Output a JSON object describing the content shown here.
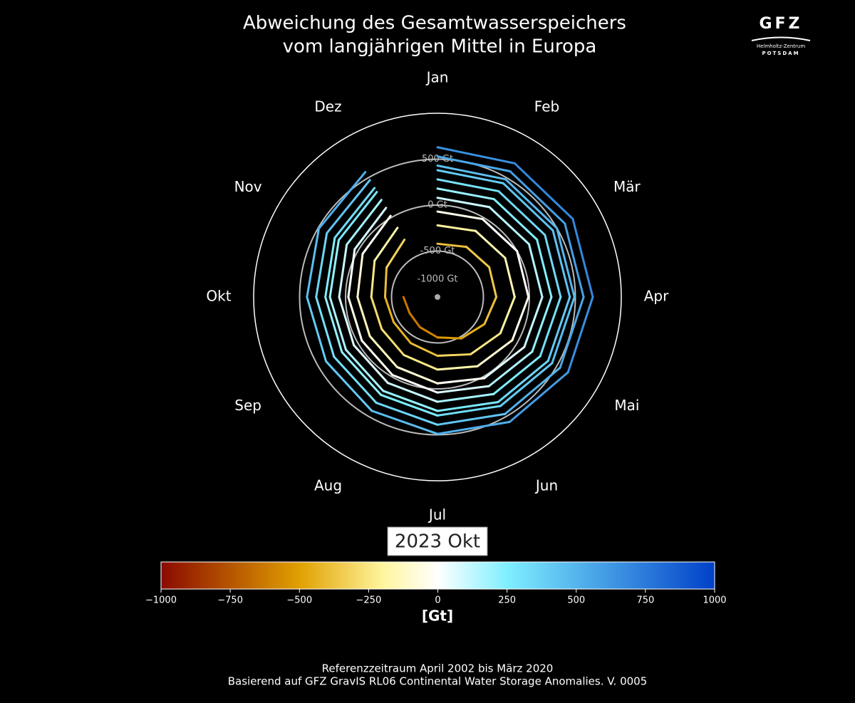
{
  "chart_data": {
    "type": "polar-line",
    "title": "Abweichung des Gesamtwasserspeichers",
    "subtitle": "vom langjährigen Mittel in Europa",
    "categories": [
      "Jan",
      "Feb",
      "Mär",
      "Apr",
      "Mai",
      "Jun",
      "Jul",
      "Aug",
      "Sep",
      "Okt",
      "Nov",
      "Dez"
    ],
    "rlim": [
      -1000,
      1000
    ],
    "rticks": [
      {
        "value": -1000,
        "label": "-1000 Gt"
      },
      {
        "value": -500,
        "label": "-500 Gt"
      },
      {
        "value": 0,
        "label": "0 Gt"
      },
      {
        "value": 500,
        "label": "500 Gt"
      }
    ],
    "series": [
      {
        "values": [
          630,
          680,
          700,
          690,
          640,
          570,
          490,
          430,
          400,
          420,
          490,
          570
        ]
      },
      {
        "values": [
          530,
          580,
          600,
          590,
          540,
          470,
          390,
          330,
          300,
          320,
          390,
          470
        ]
      },
      {
        "values": [
          430,
          480,
          500,
          490,
          440,
          370,
          290,
          230,
          200,
          220,
          290,
          370
        ]
      },
      {
        "values": [
          380,
          430,
          450,
          440,
          390,
          320,
          240,
          180,
          150,
          170,
          240,
          320
        ]
      },
      {
        "values": [
          280,
          330,
          350,
          340,
          290,
          220,
          140,
          80,
          50,
          70,
          140,
          220
        ]
      },
      {
        "values": [
          180,
          230,
          250,
          240,
          190,
          120,
          40,
          -20,
          -50,
          -30,
          40,
          120
        ]
      },
      {
        "values": [
          80,
          130,
          150,
          140,
          90,
          20,
          -60,
          -120,
          -150,
          -130,
          -60,
          20
        ]
      },
      {
        "values": [
          -70,
          -20,
          0,
          -10,
          -60,
          -130,
          -210,
          -270,
          -300,
          -280,
          -210,
          -130
        ]
      },
      {
        "values": [
          -220,
          -170,
          -150,
          -160,
          -210,
          -280,
          -360,
          -420,
          -450,
          -430,
          -360,
          -280
        ]
      },
      {
        "values": [
          -420,
          -370,
          -350,
          -360,
          -410,
          -480,
          -560,
          -620,
          -650,
          -630,
          null,
          null
        ]
      }
    ],
    "annotation": "2023 Okt",
    "colorscale": [
      [
        -1000,
        "#8b0a00"
      ],
      [
        -500,
        "#e0a000"
      ],
      [
        -200,
        "#fff59d"
      ],
      [
        0,
        "#ffffff"
      ],
      [
        250,
        "#7fefff"
      ],
      [
        1000,
        "#0040c8"
      ]
    ],
    "colorbar_label": "[Gt]",
    "colorbar_ticks": [
      {
        "value": -1000,
        "label": "−1000"
      },
      {
        "value": -750,
        "label": "−750"
      },
      {
        "value": -500,
        "label": "−500"
      },
      {
        "value": -250,
        "label": "−250"
      },
      0,
      250,
      500,
      750,
      1000
    ],
    "footer": [
      "Referenzzeitraum April 2002 bis März 2020",
      "Basierend auf GFZ GravIS RL06 Continental Water Storage Anomalies. V. 0005"
    ],
    "logo": {
      "name": "GFZ",
      "line1": "Helmholtz-Zentrum",
      "line2": "POTSDAM"
    }
  }
}
